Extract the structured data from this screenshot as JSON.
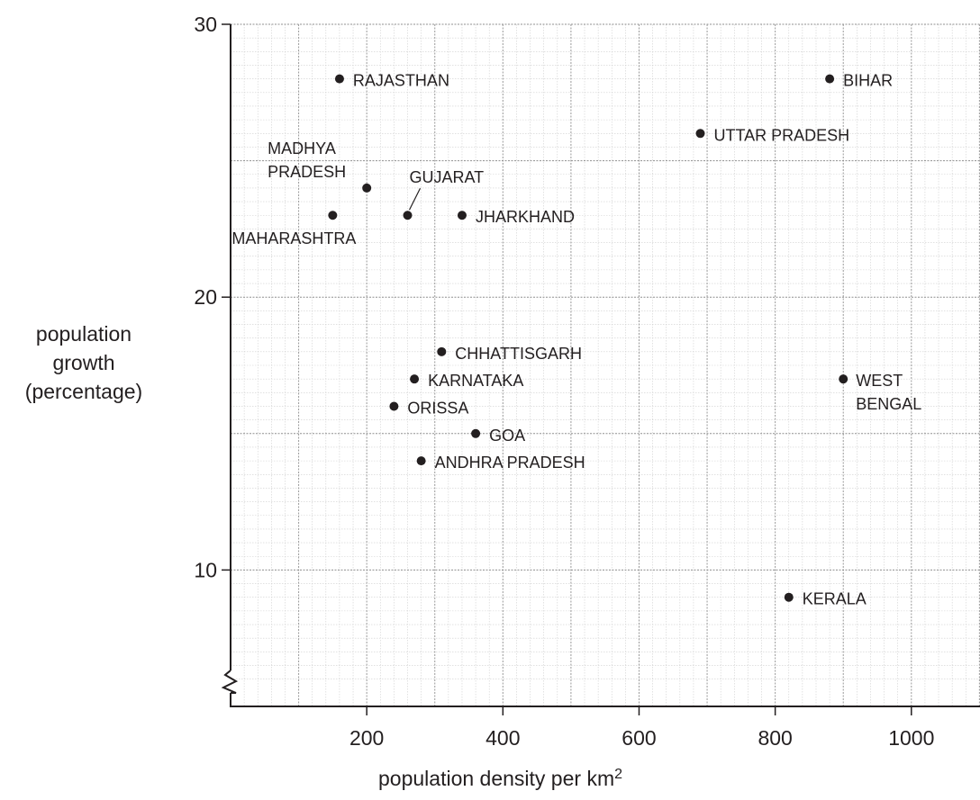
{
  "chart_data": {
    "type": "scatter",
    "xlabel": "population density per km",
    "xlabel_superscript": "2",
    "ylabel_lines": [
      "population",
      "growth",
      "(percentage)"
    ],
    "xlim": [
      0,
      1100
    ],
    "ylim": [
      6,
      30
    ],
    "y_axis_break": true,
    "grid": true,
    "x_ticks": [
      {
        "value": 200,
        "label": "200"
      },
      {
        "value": 400,
        "label": "400"
      },
      {
        "value": 600,
        "label": "600"
      },
      {
        "value": 800,
        "label": "800"
      },
      {
        "value": 1000,
        "label": "1000"
      }
    ],
    "y_ticks": [
      {
        "value": 10,
        "label": "10"
      },
      {
        "value": 20,
        "label": "20"
      },
      {
        "value": 30,
        "label": "30"
      }
    ],
    "points": [
      {
        "name": "RAJASTHAN",
        "lines": [
          "RAJASTHAN"
        ],
        "x": 160,
        "y": 28
      },
      {
        "name": "BIHAR",
        "lines": [
          "BIHAR"
        ],
        "x": 880,
        "y": 28
      },
      {
        "name": "UTTAR PRADESH",
        "lines": [
          "UTTAR PRADESH"
        ],
        "x": 690,
        "y": 26
      },
      {
        "name": "MADHYA PRADESH",
        "lines": [
          "MADHYA",
          "PRADESH"
        ],
        "x": 200,
        "y": 24
      },
      {
        "name": "GUJARAT",
        "lines": [
          "GUJARAT"
        ],
        "x": 260,
        "y": 23
      },
      {
        "name": "JHARKHAND",
        "lines": [
          "JHARKHAND"
        ],
        "x": 340,
        "y": 23
      },
      {
        "name": "MAHARASHTRA",
        "lines": [
          "MAHARASHTRA"
        ],
        "x": 150,
        "y": 23
      },
      {
        "name": "CHHATTISGARH",
        "lines": [
          "CHHATTISGARH"
        ],
        "x": 310,
        "y": 18
      },
      {
        "name": "KARNATAKA",
        "lines": [
          "KARNATAKA"
        ],
        "x": 270,
        "y": 17
      },
      {
        "name": "WEST BENGAL",
        "lines": [
          "WEST",
          "BENGAL"
        ],
        "x": 900,
        "y": 17
      },
      {
        "name": "ORISSA",
        "lines": [
          "ORISSA"
        ],
        "x": 240,
        "y": 16
      },
      {
        "name": "GOA",
        "lines": [
          "GOA"
        ],
        "x": 360,
        "y": 15
      },
      {
        "name": "ANDHRA PRADESH",
        "lines": [
          "ANDHRA PRADESH"
        ],
        "x": 280,
        "y": 14
      },
      {
        "name": "KERALA",
        "lines": [
          "KERALA"
        ],
        "x": 820,
        "y": 9
      }
    ]
  }
}
